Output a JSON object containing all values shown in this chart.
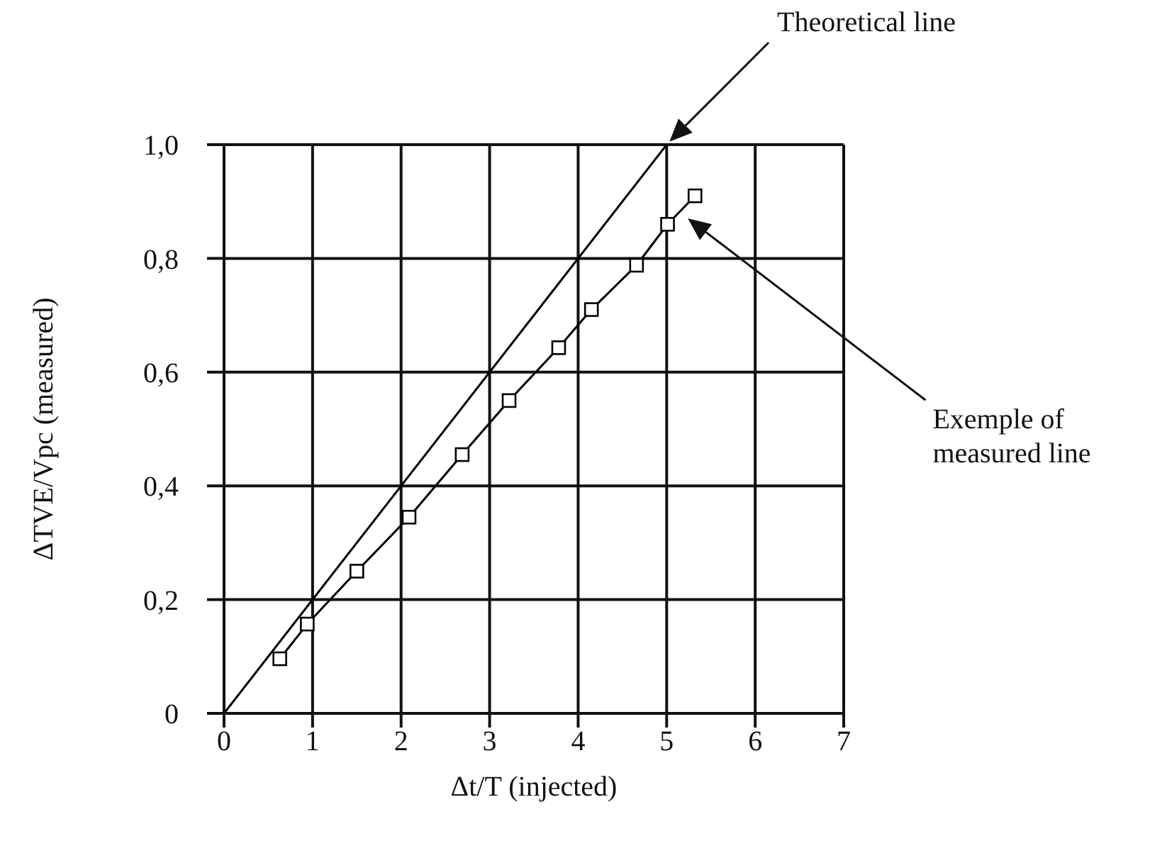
{
  "chart_data": {
    "type": "line",
    "xlabel": "Δt/T (injected)",
    "ylabel": "ΔTVE/Vpc (measured)",
    "xlim": [
      0,
      7
    ],
    "xticks": [
      0,
      1,
      2,
      3,
      4,
      5,
      6,
      7
    ],
    "ylim": [
      0,
      1
    ],
    "yticks": [
      {
        "value": 0,
        "label": "0"
      },
      {
        "value": 0.2,
        "label": "0,2"
      },
      {
        "value": 0.4,
        "label": "0,4"
      },
      {
        "value": 0.6,
        "label": "0,6"
      },
      {
        "value": 0.8,
        "label": "0,8"
      },
      {
        "value": 1,
        "label": "1,0"
      }
    ],
    "grid": true,
    "line_style": "solid",
    "series": [
      {
        "color": "#000000",
        "marker": "none",
        "x": [
          0,
          5
        ],
        "values": [
          0,
          1
        ]
      },
      {
        "color": "#000000",
        "marker": "square",
        "x": [
          0.63,
          0.94,
          1.5,
          2.09,
          2.69,
          3.22,
          3.78,
          4.15,
          4.66,
          5.01,
          5.32
        ],
        "values": [
          0.096,
          0.157,
          0.25,
          0.345,
          0.455,
          0.55,
          0.643,
          0.71,
          0.788,
          0.86,
          0.91
        ]
      }
    ],
    "annotations": [
      "Theoretical line",
      "Exemple of measured line"
    ]
  }
}
